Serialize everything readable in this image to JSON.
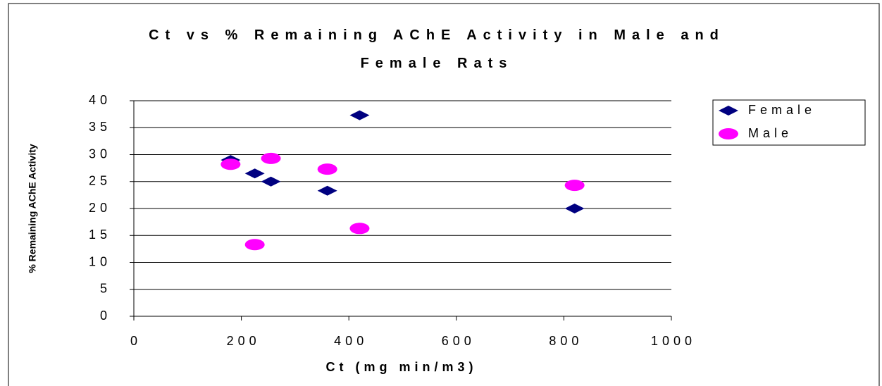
{
  "chart_data": {
    "type": "scatter",
    "title": "Ct vs % Remaining AChE Activity in Male and Female Rats",
    "x_label": "Ct (mg min/m3)",
    "y_label": "% Remaining AChE Activity",
    "series": [
      {
        "name": "Female",
        "color": "#000080",
        "marker": "diamond",
        "x": [
          180,
          225,
          255,
          360,
          420,
          820
        ],
        "values": [
          29,
          26.5,
          25,
          23.3,
          37.3,
          20
        ]
      },
      {
        "name": "Male",
        "color": "#ff00ff",
        "marker": "ellipse",
        "x": [
          180,
          225,
          255,
          360,
          420,
          820
        ],
        "values": [
          28.2,
          13.3,
          29.3,
          27.3,
          16.3,
          24.3
        ]
      }
    ],
    "xlim": [
      0,
      1000
    ],
    "xticks": [
      0,
      200,
      400,
      600,
      800,
      1000
    ],
    "ylim": [
      0,
      40
    ],
    "yticks": [
      0,
      5,
      10,
      15,
      20,
      25,
      30,
      35,
      40
    ],
    "grid": true,
    "legend": "right"
  }
}
